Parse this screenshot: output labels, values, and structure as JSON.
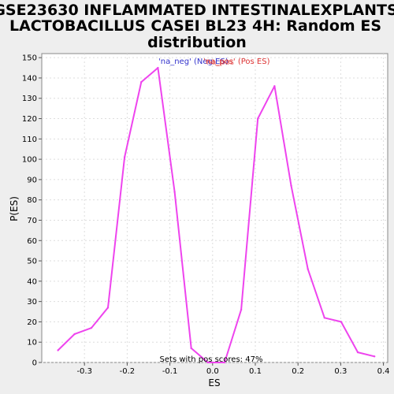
{
  "chart_data": {
    "type": "line",
    "title_lines": [
      "GSE23630 INFLAMMATED INTESTINALEXPLANTS",
      "LACTOBACILLUS CASEI BL23 4H: Random ES",
      "distribution"
    ],
    "xlabel": "ES",
    "ylabel": "P(ES)",
    "xlim": [
      -0.4,
      0.41
    ],
    "ylim": [
      0,
      152
    ],
    "x_ticks": [
      -0.3,
      -0.2,
      -0.1,
      0.0,
      0.1,
      0.2,
      0.3,
      0.4
    ],
    "x_tick_labels": [
      "-0.3",
      "-0.2",
      "-0.1",
      "0.0",
      "0.1",
      "0.2",
      "0.3",
      "0.4"
    ],
    "y_ticks": [
      0,
      10,
      20,
      30,
      40,
      50,
      60,
      70,
      80,
      90,
      100,
      110,
      120,
      130,
      140,
      150
    ],
    "y_tick_labels": [
      "0",
      "10",
      "20",
      "30",
      "40",
      "50",
      "60",
      "70",
      "80",
      "90",
      "100",
      "110",
      "120",
      "130",
      "140",
      "150"
    ],
    "grid": true,
    "legend": [
      {
        "label": "'na_neg' (Neg ES)",
        "color": "#3333cc"
      },
      {
        "label": "'na_pos' (Pos ES)",
        "color": "#dd3333"
      }
    ],
    "legend_overlap_text": "na_pos",
    "annotation": "Sets with pos scores: 47%",
    "series": [
      {
        "name": "Random ES",
        "color": "#ee44ee",
        "x": [
          -0.362,
          -0.323,
          -0.284,
          -0.245,
          -0.206,
          -0.167,
          -0.128,
          -0.089,
          -0.05,
          -0.011,
          0.028,
          0.067,
          0.106,
          0.145,
          0.184,
          0.223,
          0.262,
          0.301,
          0.34,
          0.379
        ],
        "y": [
          6,
          14,
          17,
          27,
          101,
          138,
          145,
          84,
          7,
          0,
          0,
          26,
          120,
          136,
          87,
          46,
          22,
          20,
          5,
          3
        ]
      }
    ]
  }
}
